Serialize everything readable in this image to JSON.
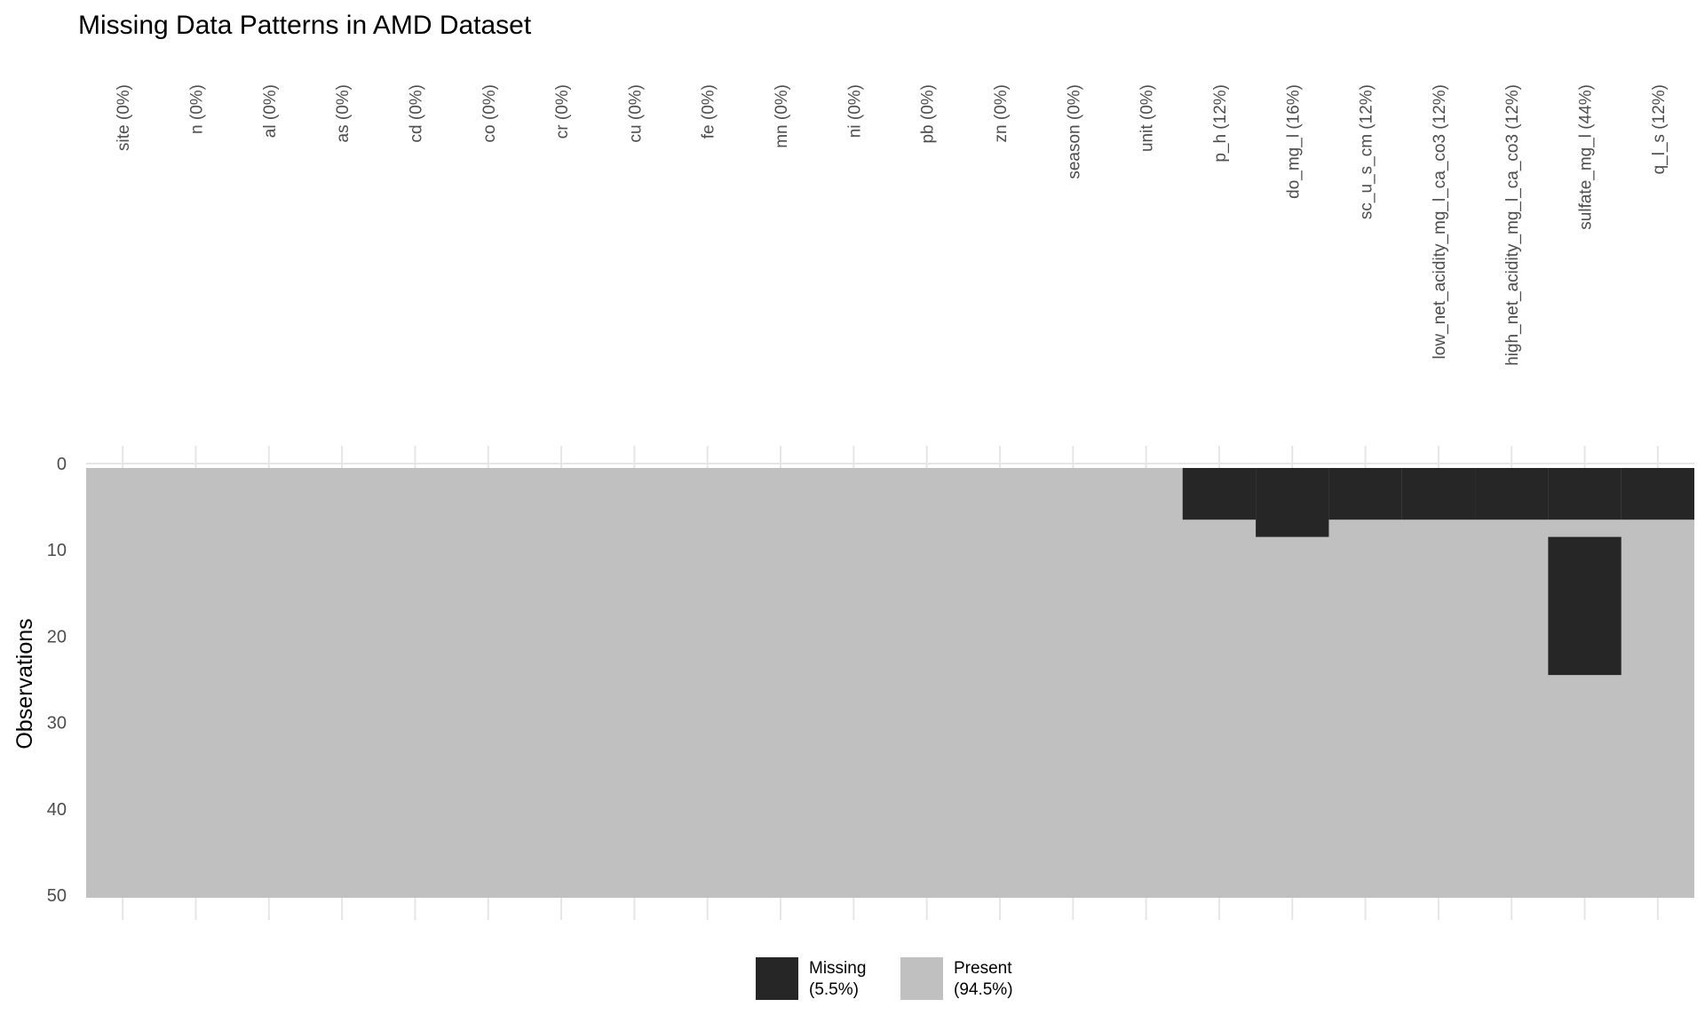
{
  "chart_data": {
    "type": "heatmap",
    "title": "Missing Data Patterns in AMD Dataset",
    "xlabel": "",
    "ylabel": "Observations",
    "n_rows": 50,
    "ylim": [
      0,
      50
    ],
    "y_ticks": [
      0,
      10,
      20,
      30,
      40,
      50
    ],
    "columns": [
      {
        "label": "site (0%)",
        "missing_rows": []
      },
      {
        "label": "n (0%)",
        "missing_rows": []
      },
      {
        "label": "al (0%)",
        "missing_rows": []
      },
      {
        "label": "as (0%)",
        "missing_rows": []
      },
      {
        "label": "cd (0%)",
        "missing_rows": []
      },
      {
        "label": "co (0%)",
        "missing_rows": []
      },
      {
        "label": "cr (0%)",
        "missing_rows": []
      },
      {
        "label": "cu (0%)",
        "missing_rows": []
      },
      {
        "label": "fe (0%)",
        "missing_rows": []
      },
      {
        "label": "mn (0%)",
        "missing_rows": []
      },
      {
        "label": "ni (0%)",
        "missing_rows": []
      },
      {
        "label": "pb (0%)",
        "missing_rows": []
      },
      {
        "label": "zn (0%)",
        "missing_rows": []
      },
      {
        "label": "season (0%)",
        "missing_rows": []
      },
      {
        "label": "unit (0%)",
        "missing_rows": []
      },
      {
        "label": "p_h (12%)",
        "missing_rows": [
          1,
          2,
          3,
          4,
          5,
          6
        ]
      },
      {
        "label": "do_mg_l (16%)",
        "missing_rows": [
          1,
          2,
          3,
          4,
          5,
          6,
          7,
          8
        ]
      },
      {
        "label": "sc_u_s_cm (12%)",
        "missing_rows": [
          1,
          2,
          3,
          4,
          5,
          6
        ]
      },
      {
        "label": "low_net_acidity_mg_l_ca_co3 (12%)",
        "missing_rows": [
          1,
          2,
          3,
          4,
          5,
          6
        ]
      },
      {
        "label": "high_net_acidity_mg_l_ca_co3 (12%)",
        "missing_rows": [
          1,
          2,
          3,
          4,
          5,
          6
        ]
      },
      {
        "label": "sulfate_mg_l (44%)",
        "missing_rows": [
          1,
          2,
          3,
          4,
          5,
          6,
          9,
          10,
          11,
          12,
          13,
          14,
          15,
          16,
          17,
          18,
          19,
          20,
          21,
          22,
          23,
          24
        ]
      },
      {
        "label": "q_l_s (12%)",
        "missing_rows": [
          1,
          2,
          3,
          4,
          5,
          6
        ]
      }
    ],
    "legend": {
      "placement": "bottom",
      "items": [
        {
          "key": "missing",
          "label_line1": "Missing",
          "label_line2": "(5.5%)",
          "color": "#262626"
        },
        {
          "key": "present",
          "label_line1": "Present",
          "label_line2": "(94.5%)",
          "color": "#c0c0c0"
        }
      ]
    },
    "colors": {
      "missing": "#262626",
      "present": "#c0c0c0",
      "grid": "#e6e6e6",
      "text": "#4d4d4d",
      "title": "#000000"
    }
  }
}
